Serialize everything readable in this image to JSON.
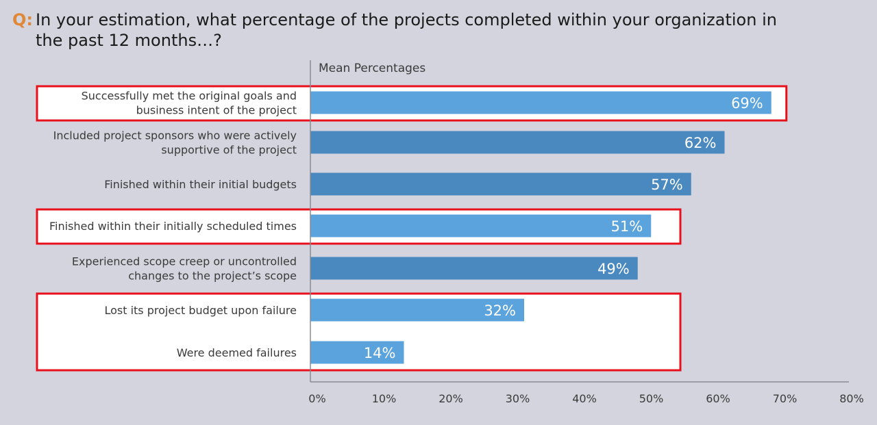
{
  "question": {
    "prefix": "Q:",
    "text": "In your estimation, what percentage of the projects completed within your organization in the past 12 months…?"
  },
  "chart_data": {
    "type": "bar",
    "orientation": "horizontal",
    "series_label": "Mean Percentages",
    "categories": [
      [
        "Successfully met the original goals and",
        "business intent of the project"
      ],
      [
        "Included project sponsors who were actively",
        "supportive of the project"
      ],
      [
        "Finished within their initial budgets"
      ],
      [
        "Finished within their initially scheduled times"
      ],
      [
        "Experienced scope creep or uncontrolled",
        "changes to the project’s scope"
      ],
      [
        "Lost its project budget upon failure"
      ],
      [
        "Were deemed failures"
      ]
    ],
    "values": [
      69,
      62,
      57,
      51,
      49,
      32,
      14
    ],
    "data_labels": [
      "69%",
      "62%",
      "57%",
      "51%",
      "49%",
      "32%",
      "14%"
    ],
    "highlighted": [
      true,
      false,
      false,
      true,
      false,
      true,
      true
    ],
    "xlim": [
      0,
      80
    ],
    "xticks": [
      0,
      10,
      20,
      30,
      40,
      50,
      60,
      70,
      80
    ],
    "xtick_labels": [
      "0%",
      "10%",
      "20%",
      "30%",
      "40%",
      "50%",
      "60%",
      "70%",
      "80%"
    ],
    "colors": {
      "light_bar": "#5ba3dc",
      "dark_bar": "#4a88c0",
      "highlight_box": "#e8101a",
      "highlight_fill": "#ffffff",
      "axis": "#8a8a92",
      "text": "#3a3a3a"
    }
  }
}
